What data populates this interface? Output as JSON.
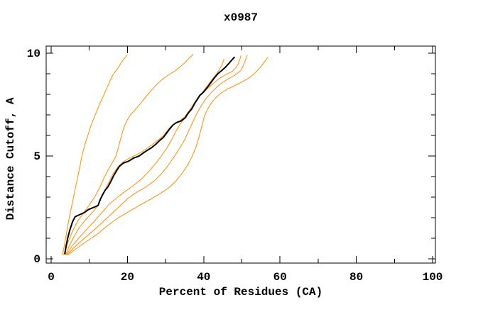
{
  "figure": {
    "background": "#ffffff",
    "frame_color": "#000000"
  },
  "chart_data": {
    "type": "line",
    "title": "x0987",
    "xlabel": "Percent of Residues (CA)",
    "ylabel": "Distance Cutoff, A",
    "x_axis": {
      "range": [
        0,
        100
      ],
      "ticks": [
        0,
        20,
        40,
        60,
        80,
        100
      ],
      "minor_ticks": [
        10,
        30,
        50,
        70,
        90
      ]
    },
    "y_axis": {
      "range": [
        0,
        10
      ],
      "ticks": [
        0,
        5,
        10
      ],
      "minor_ticks": [
        1,
        2,
        3,
        4,
        6,
        7,
        8,
        9
      ]
    },
    "grid": false,
    "legend": "none",
    "series": [
      {
        "name": "orange-curve-1",
        "color": "#ff8c00",
        "width": 1,
        "points": [
          [
            3.0,
            0.2
          ],
          [
            3.4,
            0.6
          ],
          [
            3.8,
            1.0
          ],
          [
            4.2,
            1.45
          ],
          [
            4.7,
            1.95
          ],
          [
            5.2,
            2.4
          ],
          [
            5.7,
            2.85
          ],
          [
            6.2,
            3.3
          ],
          [
            6.7,
            3.75
          ],
          [
            7.1,
            4.1
          ],
          [
            7.5,
            4.45
          ],
          [
            7.9,
            4.85
          ],
          [
            8.4,
            5.25
          ],
          [
            9.0,
            5.65
          ],
          [
            9.7,
            6.05
          ],
          [
            10.4,
            6.45
          ],
          [
            11.1,
            6.8
          ],
          [
            11.9,
            7.15
          ],
          [
            12.9,
            7.6
          ],
          [
            13.9,
            8.0
          ],
          [
            14.7,
            8.35
          ],
          [
            15.2,
            8.55
          ],
          [
            16.2,
            8.95
          ],
          [
            17.0,
            9.15
          ],
          [
            17.6,
            9.3
          ],
          [
            18.4,
            9.55
          ],
          [
            19.2,
            9.75
          ],
          [
            19.9,
            9.9
          ]
        ]
      },
      {
        "name": "orange-curve-2",
        "color": "#ff8c00",
        "width": 1,
        "points": [
          [
            3.3,
            0.2
          ],
          [
            4.4,
            0.8
          ],
          [
            5.6,
            1.35
          ],
          [
            7.0,
            1.85
          ],
          [
            8.4,
            2.2
          ],
          [
            9.9,
            2.6
          ],
          [
            11.4,
            3.0
          ],
          [
            12.7,
            3.45
          ],
          [
            13.9,
            3.95
          ],
          [
            15.0,
            4.35
          ],
          [
            16.1,
            4.7
          ],
          [
            17.0,
            5.0
          ],
          [
            17.7,
            5.45
          ],
          [
            18.3,
            5.9
          ],
          [
            19.0,
            6.35
          ],
          [
            19.8,
            6.7
          ],
          [
            20.8,
            7.0
          ],
          [
            22.0,
            7.25
          ],
          [
            23.4,
            7.55
          ],
          [
            24.9,
            7.9
          ],
          [
            26.3,
            8.2
          ],
          [
            27.8,
            8.5
          ],
          [
            29.3,
            8.75
          ],
          [
            30.8,
            8.95
          ],
          [
            32.2,
            9.1
          ],
          [
            33.6,
            9.3
          ],
          [
            34.8,
            9.5
          ],
          [
            35.9,
            9.7
          ],
          [
            36.7,
            9.85
          ],
          [
            37.2,
            9.95
          ]
        ]
      },
      {
        "name": "orange-curve-3",
        "color": "#ff8c00",
        "width": 1,
        "points": [
          [
            3.8,
            0.2
          ],
          [
            4.7,
            0.6
          ],
          [
            5.9,
            1.05
          ],
          [
            7.3,
            1.5
          ],
          [
            9.0,
            1.9
          ],
          [
            10.8,
            2.25
          ],
          [
            12.1,
            2.55
          ],
          [
            12.9,
            2.85
          ],
          [
            13.6,
            3.15
          ],
          [
            14.4,
            3.45
          ],
          [
            15.3,
            3.8
          ],
          [
            16.3,
            4.15
          ],
          [
            17.4,
            4.45
          ],
          [
            18.8,
            4.7
          ],
          [
            20.5,
            4.9
          ],
          [
            22.2,
            5.05
          ],
          [
            23.8,
            5.2
          ],
          [
            25.3,
            5.4
          ],
          [
            26.8,
            5.6
          ],
          [
            28.2,
            5.8
          ],
          [
            29.5,
            6.0
          ],
          [
            30.5,
            6.25
          ],
          [
            31.5,
            6.45
          ],
          [
            32.6,
            6.6
          ],
          [
            33.8,
            6.72
          ],
          [
            35.0,
            6.9
          ],
          [
            36.0,
            7.15
          ],
          [
            36.9,
            7.4
          ],
          [
            37.8,
            7.65
          ],
          [
            38.7,
            7.9
          ],
          [
            39.7,
            8.1
          ],
          [
            40.9,
            8.4
          ],
          [
            42.1,
            8.7
          ],
          [
            43.2,
            8.95
          ],
          [
            44.1,
            9.2
          ],
          [
            44.8,
            9.45
          ],
          [
            45.3,
            9.7
          ]
        ]
      },
      {
        "name": "orange-curve-4",
        "color": "#ff8c00",
        "width": 1,
        "points": [
          [
            4.0,
            0.2
          ],
          [
            5.4,
            0.6
          ],
          [
            7.2,
            1.0
          ],
          [
            9.4,
            1.45
          ],
          [
            11.4,
            1.85
          ],
          [
            13.3,
            2.25
          ],
          [
            15.2,
            2.65
          ],
          [
            17.1,
            2.95
          ],
          [
            19.2,
            3.25
          ],
          [
            21.4,
            3.55
          ],
          [
            23.5,
            3.85
          ],
          [
            25.4,
            4.2
          ],
          [
            27.2,
            4.6
          ],
          [
            28.9,
            5.0
          ],
          [
            30.4,
            5.4
          ],
          [
            31.6,
            5.8
          ],
          [
            32.7,
            6.2
          ],
          [
            33.8,
            6.55
          ],
          [
            35.0,
            6.85
          ],
          [
            36.2,
            7.15
          ],
          [
            37.4,
            7.5
          ],
          [
            38.7,
            7.85
          ],
          [
            40.2,
            8.15
          ],
          [
            42.0,
            8.45
          ],
          [
            43.9,
            8.75
          ],
          [
            45.7,
            8.95
          ],
          [
            47.4,
            9.1
          ],
          [
            48.5,
            9.3
          ],
          [
            49.1,
            9.5
          ],
          [
            49.5,
            9.7
          ],
          [
            49.7,
            9.87
          ]
        ]
      },
      {
        "name": "orange-curve-5",
        "color": "#ff8c00",
        "width": 1,
        "points": [
          [
            4.2,
            0.2
          ],
          [
            6.0,
            0.55
          ],
          [
            8.4,
            0.95
          ],
          [
            10.9,
            1.35
          ],
          [
            13.3,
            1.75
          ],
          [
            15.6,
            2.15
          ],
          [
            17.9,
            2.55
          ],
          [
            20.2,
            2.95
          ],
          [
            22.5,
            3.25
          ],
          [
            24.9,
            3.5
          ],
          [
            27.1,
            3.8
          ],
          [
            29.0,
            4.15
          ],
          [
            30.7,
            4.55
          ],
          [
            32.2,
            4.95
          ],
          [
            33.6,
            5.35
          ],
          [
            34.9,
            5.75
          ],
          [
            36.0,
            6.2
          ],
          [
            37.0,
            6.6
          ],
          [
            38.0,
            7.0
          ],
          [
            39.2,
            7.4
          ],
          [
            40.6,
            7.8
          ],
          [
            42.3,
            8.15
          ],
          [
            44.3,
            8.5
          ],
          [
            46.4,
            8.75
          ],
          [
            48.3,
            8.95
          ],
          [
            49.7,
            9.15
          ],
          [
            50.5,
            9.45
          ],
          [
            51.0,
            9.7
          ],
          [
            51.4,
            9.9
          ]
        ]
      },
      {
        "name": "orange-curve-6",
        "color": "#ff8c00",
        "width": 1,
        "points": [
          [
            4.5,
            0.2
          ],
          [
            6.6,
            0.5
          ],
          [
            9.3,
            0.85
          ],
          [
            12.1,
            1.2
          ],
          [
            14.7,
            1.6
          ],
          [
            17.2,
            1.95
          ],
          [
            19.9,
            2.25
          ],
          [
            22.7,
            2.55
          ],
          [
            25.6,
            2.85
          ],
          [
            28.4,
            3.15
          ],
          [
            30.8,
            3.45
          ],
          [
            32.8,
            3.8
          ],
          [
            34.5,
            4.2
          ],
          [
            35.9,
            4.6
          ],
          [
            37.0,
            5.0
          ],
          [
            38.0,
            5.45
          ],
          [
            38.8,
            5.95
          ],
          [
            39.5,
            6.45
          ],
          [
            40.2,
            6.95
          ],
          [
            41.2,
            7.35
          ],
          [
            42.5,
            7.7
          ],
          [
            44.1,
            8.0
          ],
          [
            46.1,
            8.25
          ],
          [
            48.4,
            8.45
          ],
          [
            50.5,
            8.65
          ],
          [
            52.3,
            8.85
          ],
          [
            53.8,
            9.1
          ],
          [
            55.0,
            9.35
          ],
          [
            56.0,
            9.6
          ],
          [
            56.8,
            9.8
          ]
        ]
      },
      {
        "name": "black-curve",
        "color": "#000000",
        "width": 2,
        "points": [
          [
            3.6,
            0.25
          ],
          [
            4.0,
            0.7
          ],
          [
            4.4,
            1.05
          ],
          [
            4.9,
            1.4
          ],
          [
            5.6,
            1.8
          ],
          [
            6.3,
            2.05
          ],
          [
            7.5,
            2.15
          ],
          [
            8.7,
            2.25
          ],
          [
            9.8,
            2.4
          ],
          [
            11.2,
            2.5
          ],
          [
            12.3,
            2.6
          ],
          [
            12.9,
            2.9
          ],
          [
            13.6,
            3.15
          ],
          [
            14.2,
            3.35
          ],
          [
            14.9,
            3.5
          ],
          [
            15.6,
            3.75
          ],
          [
            16.4,
            4.05
          ],
          [
            17.2,
            4.3
          ],
          [
            17.9,
            4.5
          ],
          [
            18.9,
            4.65
          ],
          [
            20.3,
            4.75
          ],
          [
            21.6,
            4.9
          ],
          [
            23.1,
            5.0
          ],
          [
            24.2,
            5.15
          ],
          [
            25.4,
            5.3
          ],
          [
            26.3,
            5.4
          ],
          [
            27.3,
            5.55
          ],
          [
            28.4,
            5.75
          ],
          [
            29.4,
            5.9
          ],
          [
            30.2,
            6.1
          ],
          [
            31.0,
            6.3
          ],
          [
            31.9,
            6.5
          ],
          [
            32.8,
            6.62
          ],
          [
            34.0,
            6.7
          ],
          [
            35.1,
            6.85
          ],
          [
            36.0,
            7.1
          ],
          [
            36.9,
            7.3
          ],
          [
            37.6,
            7.55
          ],
          [
            38.3,
            7.75
          ],
          [
            39.0,
            7.95
          ],
          [
            39.9,
            8.1
          ],
          [
            40.8,
            8.3
          ],
          [
            41.8,
            8.55
          ],
          [
            42.8,
            8.8
          ],
          [
            43.7,
            9.0
          ],
          [
            44.7,
            9.15
          ],
          [
            45.6,
            9.3
          ],
          [
            46.6,
            9.5
          ],
          [
            47.3,
            9.65
          ],
          [
            48.0,
            9.8
          ]
        ]
      }
    ]
  }
}
